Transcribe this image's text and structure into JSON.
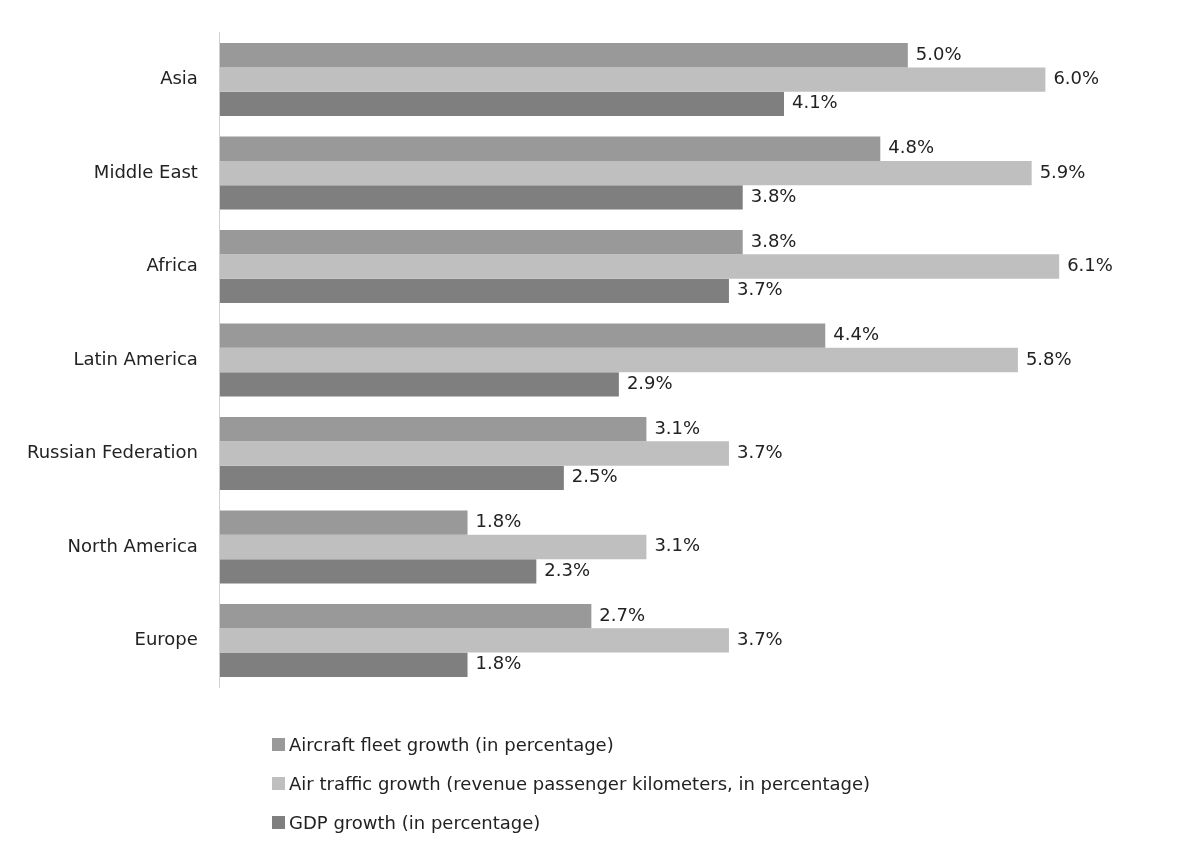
{
  "chart_data": {
    "type": "bar",
    "orientation": "horizontal",
    "categories": [
      "Asia",
      "Middle East",
      "Africa",
      "Latin America",
      "Russian Federation",
      "North America",
      "Europe"
    ],
    "series": [
      {
        "name": "Aircraft fleet growth (in percentage)",
        "color": "#999999",
        "values": [
          5.0,
          4.8,
          3.8,
          4.4,
          3.1,
          1.8,
          2.7
        ],
        "value_labels": [
          "5.0%",
          "4.8%",
          "3.8%",
          "4.4%",
          "3.1%",
          "1.8%",
          "2.7%"
        ]
      },
      {
        "name": "Air traffic growth (revenue passenger kilometers, in percentage)",
        "color": "#bfbfbf",
        "values": [
          6.0,
          5.9,
          6.1,
          5.8,
          3.7,
          3.1,
          3.7
        ],
        "value_labels": [
          "6.0%",
          "5.9%",
          "6.1%",
          "5.8%",
          "3.7%",
          "3.1%",
          "3.7%"
        ]
      },
      {
        "name": "GDP growth (in percentage)",
        "color": "#7f7f7f",
        "values": [
          4.1,
          3.8,
          3.7,
          2.9,
          2.5,
          2.3,
          1.8
        ],
        "value_labels": [
          "4.1%",
          "3.8%",
          "3.7%",
          "2.9%",
          "2.5%",
          "2.3%",
          "1.8%"
        ]
      }
    ],
    "legend": "bottom",
    "tick_labels": "y"
  }
}
